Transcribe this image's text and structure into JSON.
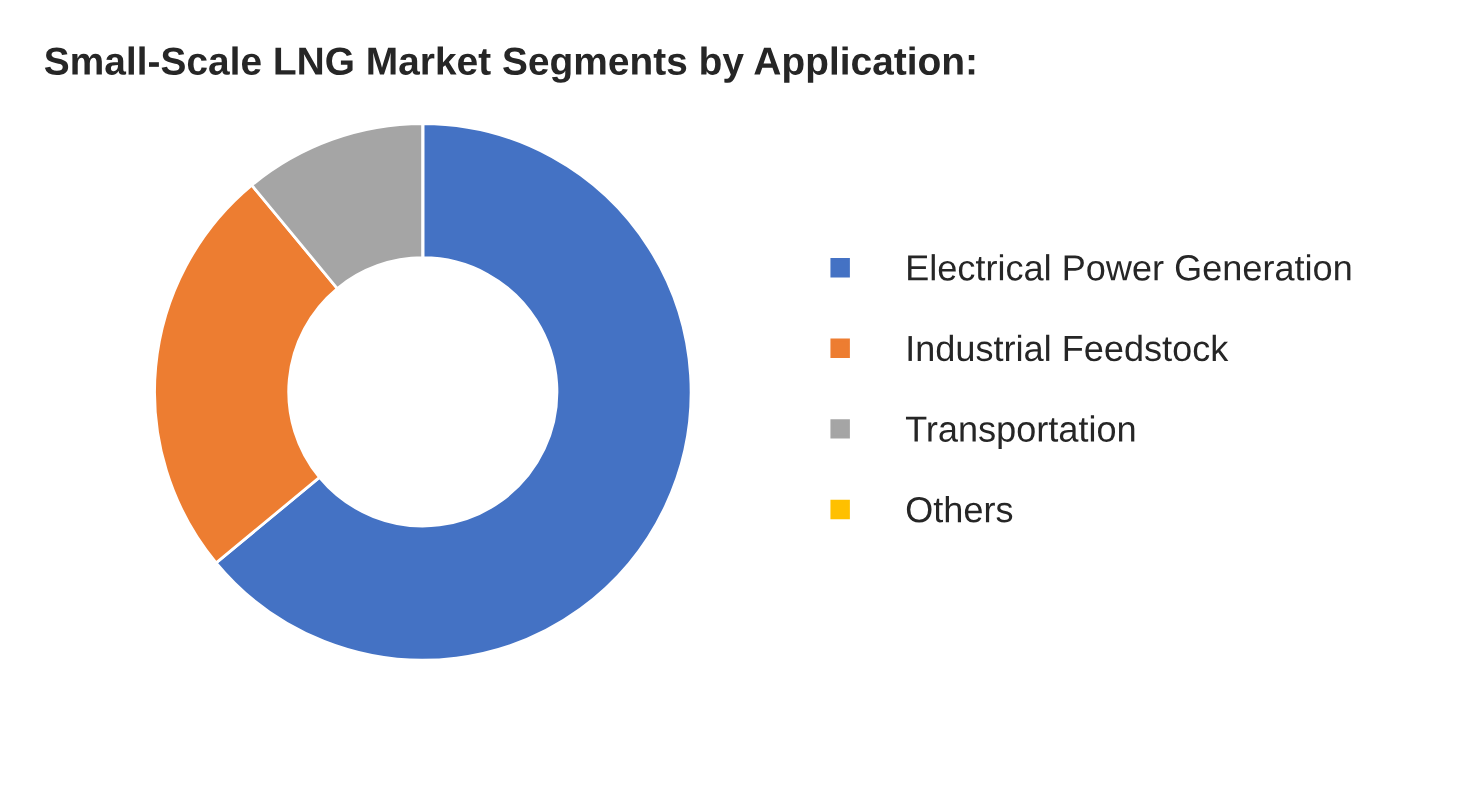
{
  "chart_data": {
    "type": "donut",
    "title": "Small-Scale LNG Market Segments by Application:",
    "categories": [
      "Electrical Power Generation",
      "Industrial Feedstock",
      "Transportation",
      "Others"
    ],
    "values": [
      64,
      25,
      11,
      0
    ],
    "colors": [
      "#4472c4",
      "#ed7d31",
      "#a5a5a5",
      "#ffc000"
    ],
    "legend": "right"
  }
}
